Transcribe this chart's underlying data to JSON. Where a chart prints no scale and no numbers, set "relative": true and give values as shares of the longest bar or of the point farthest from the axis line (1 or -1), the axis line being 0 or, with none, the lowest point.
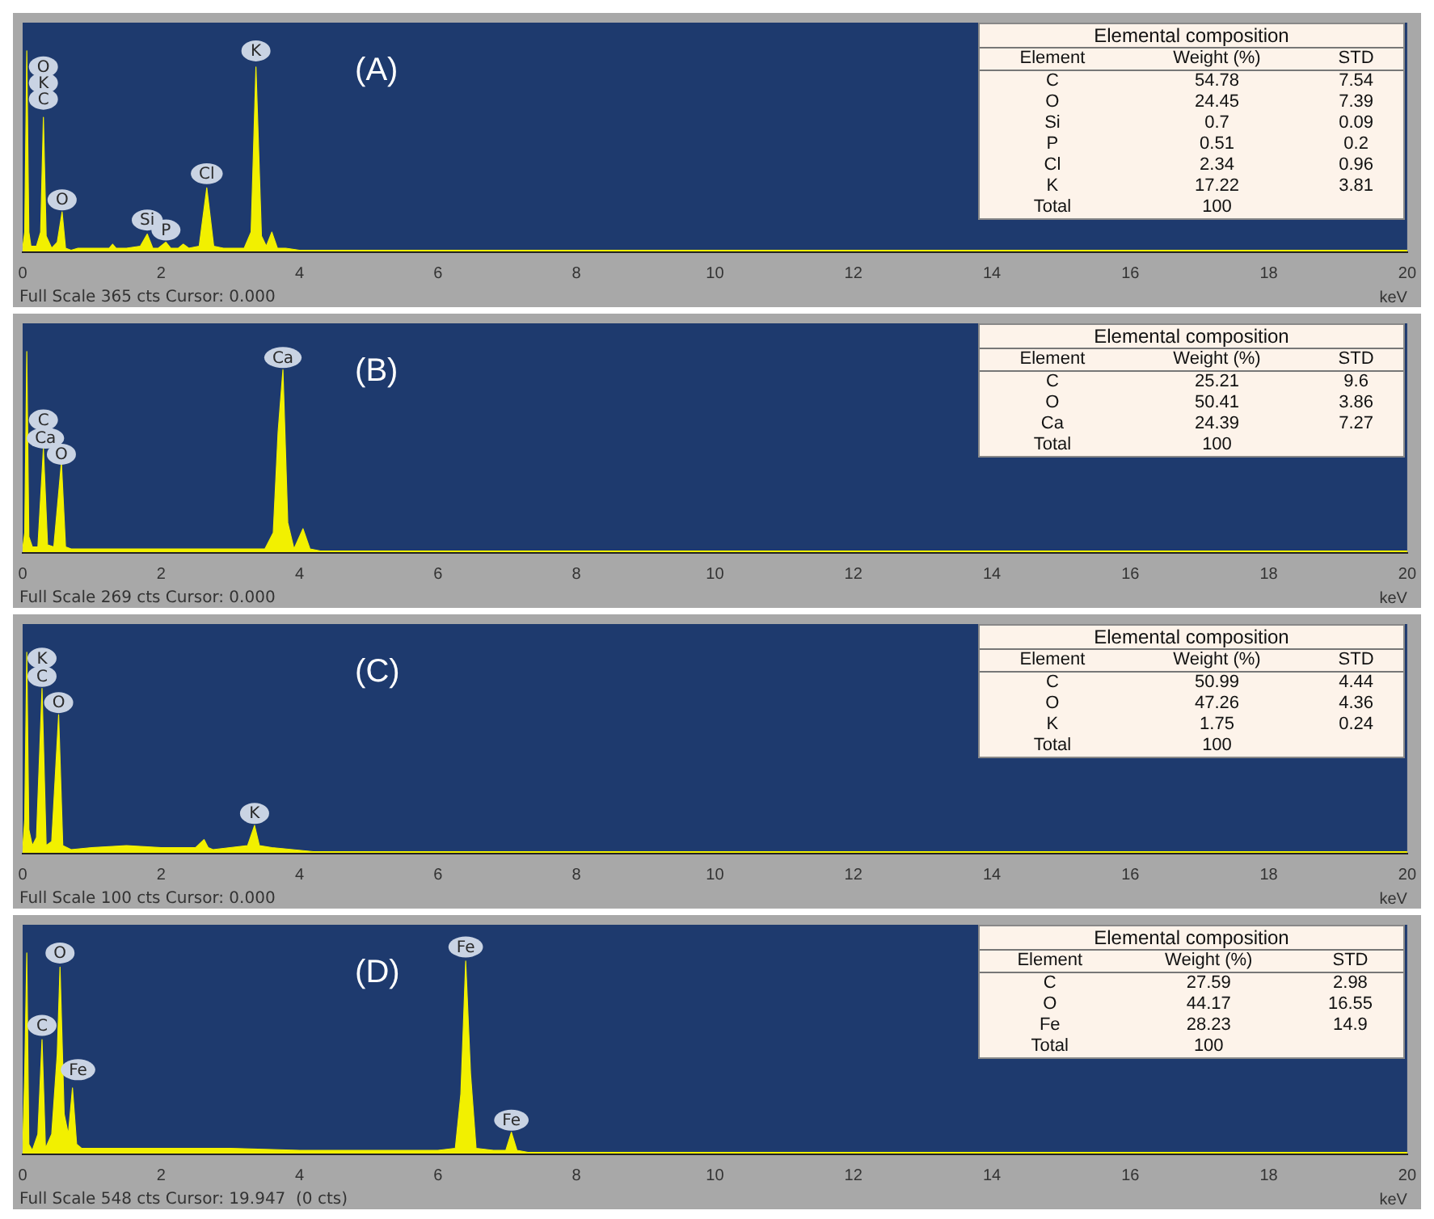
{
  "chart_data": [
    {
      "type": "area",
      "title": "(A)",
      "xlabel": "keV",
      "xlim": [
        0,
        20
      ],
      "xticks": [
        0,
        2,
        4,
        6,
        8,
        10,
        12,
        14,
        16,
        18,
        20
      ],
      "relative": true,
      "grid": false,
      "legend": false,
      "x": [
        0,
        0.03,
        0.06,
        0.09,
        0.12,
        0.2,
        0.26,
        0.3,
        0.34,
        0.42,
        0.5,
        0.57,
        0.62,
        0.7,
        0.8,
        1.0,
        1.25,
        1.3,
        1.35,
        1.5,
        1.7,
        1.8,
        1.88,
        1.96,
        2.07,
        2.14,
        2.25,
        2.32,
        2.4,
        2.55,
        2.66,
        2.76,
        2.9,
        3.2,
        3.3,
        3.37,
        3.45,
        3.52,
        3.6,
        3.68,
        3.8,
        4.0,
        5.0,
        6.0,
        8.0,
        10,
        12,
        14,
        16,
        18,
        20
      ],
      "series": [
        {
          "color": "#f2f000",
          "values": [
            0.02,
            0.1,
            1,
            0.1,
            0.03,
            0.03,
            0.1,
            0.67,
            0.08,
            0.02,
            0.05,
            0.2,
            0.02,
            0.01,
            0.02,
            0.02,
            0.02,
            0.04,
            0.02,
            0.02,
            0.03,
            0.09,
            0.02,
            0.02,
            0.05,
            0.02,
            0.02,
            0.04,
            0.02,
            0.03,
            0.32,
            0.03,
            0.02,
            0.02,
            0.1,
            0.92,
            0.08,
            0.03,
            0.1,
            0.02,
            0.02,
            0.01,
            0.01,
            0.01,
            0.01,
            0.01,
            0.01,
            0.01,
            0.01,
            0.01,
            0.01
          ]
        }
      ],
      "annotations": [
        "Full Scale 365 cts Cursor: 0.000",
        "Elemental composition",
        "Element\tWeight (%)\tSTD",
        "C\t54.78\t7.54",
        "O\t24.45\t7.39",
        "Si\t0.7\t0.09",
        "P\t0.51\t0.2",
        "Cl\t2.34\t0.96",
        "K\t17.22\t3.81",
        "Total\t100\t",
        {
          "text": "O",
          "x": 0.3,
          "y": 0.92
        },
        {
          "text": "K",
          "x": 0.3,
          "y": 0.84
        },
        {
          "text": "C",
          "x": 0.3,
          "y": 0.76
        },
        {
          "text": "O",
          "x": 0.57,
          "y": 0.26
        },
        {
          "text": "Si",
          "x": 1.8,
          "y": 0.16
        },
        {
          "text": "P",
          "x": 2.07,
          "y": 0.11
        },
        {
          "text": "Cl",
          "x": 2.66,
          "y": 0.39
        },
        {
          "text": "K",
          "x": 3.37,
          "y": 1.0
        }
      ]
    },
    {
      "type": "area",
      "title": "(B)",
      "xlabel": "keV",
      "xlim": [
        0,
        20
      ],
      "xticks": [
        0,
        2,
        4,
        6,
        8,
        10,
        12,
        14,
        16,
        18,
        20
      ],
      "relative": true,
      "grid": false,
      "legend": false,
      "x": [
        0,
        0.03,
        0.06,
        0.09,
        0.14,
        0.22,
        0.3,
        0.36,
        0.45,
        0.56,
        0.62,
        0.7,
        1.0,
        1.5,
        2.0,
        2.5,
        3.0,
        3.5,
        3.62,
        3.69,
        3.76,
        3.83,
        3.92,
        4.05,
        4.15,
        4.3,
        5,
        6,
        8,
        10,
        12,
        14,
        16,
        18,
        20
      ],
      "series": [
        {
          "color": "#f2f000",
          "values": [
            0.02,
            0.1,
            1,
            0.08,
            0.03,
            0.03,
            0.52,
            0.04,
            0.03,
            0.45,
            0.03,
            0.02,
            0.02,
            0.02,
            0.02,
            0.02,
            0.02,
            0.02,
            0.1,
            0.6,
            0.91,
            0.15,
            0.02,
            0.12,
            0.02,
            0.01,
            0.01,
            0.01,
            0.01,
            0.01,
            0.01,
            0.01,
            0.01,
            0.01,
            0.01
          ]
        }
      ],
      "annotations": [
        "Full Scale 269 cts Cursor: 0.000",
        "Elemental composition",
        "Element\tWeight (%)\tSTD",
        "C\t25.21\t9.6",
        "O\t50.41\t3.86",
        "Ca\t24.39\t7.27",
        "Total\t100\t",
        {
          "text": "Ca",
          "x": 3.76,
          "y": 0.97
        },
        {
          "text": "C",
          "x": 0.3,
          "y": 0.66
        },
        {
          "text": "Ca",
          "x": 0.33,
          "y": 0.57
        },
        {
          "text": "O",
          "x": 0.56,
          "y": 0.49
        }
      ]
    },
    {
      "type": "area",
      "title": "(C)",
      "xlabel": "keV",
      "xlim": [
        0,
        20
      ],
      "xticks": [
        0,
        2,
        4,
        6,
        8,
        10,
        12,
        14,
        16,
        18,
        20
      ],
      "relative": true,
      "grid": false,
      "legend": false,
      "x": [
        0,
        0.03,
        0.06,
        0.09,
        0.14,
        0.2,
        0.28,
        0.34,
        0.42,
        0.52,
        0.58,
        0.7,
        1.0,
        1.5,
        2.0,
        2.5,
        2.62,
        2.68,
        2.75,
        3.0,
        3.25,
        3.35,
        3.42,
        3.6,
        3.9,
        4.2,
        5,
        6,
        8,
        10,
        12,
        14,
        16,
        18,
        20
      ],
      "series": [
        {
          "color": "#f2f000",
          "values": [
            0.02,
            0.17,
            1,
            0.12,
            0.04,
            0.08,
            0.82,
            0.04,
            0.06,
            0.69,
            0.04,
            0.02,
            0.03,
            0.04,
            0.03,
            0.03,
            0.07,
            0.03,
            0.02,
            0.03,
            0.04,
            0.14,
            0.04,
            0.03,
            0.02,
            0.01,
            0.01,
            0.01,
            0.01,
            0.01,
            0.01,
            0.01,
            0.01,
            0.01,
            0.01
          ]
        }
      ],
      "annotations": [
        "Full Scale 100 cts Cursor: 0.000",
        "Elemental composition",
        "Element\tWeight (%)\tSTD",
        "C\t50.99\t4.44",
        "O\t47.26\t4.36",
        "K\t1.75\t0.24",
        "Total\t100\t",
        {
          "text": "K",
          "x": 0.28,
          "y": 0.97
        },
        {
          "text": "C",
          "x": 0.28,
          "y": 0.88
        },
        {
          "text": "O",
          "x": 0.52,
          "y": 0.75
        },
        {
          "text": "K",
          "x": 3.35,
          "y": 0.2
        }
      ]
    },
    {
      "type": "area",
      "title": "(D)",
      "xlabel": "keV",
      "xlim": [
        0,
        20
      ],
      "xticks": [
        0,
        2,
        4,
        6,
        8,
        10,
        12,
        14,
        16,
        18,
        20
      ],
      "relative": true,
      "grid": false,
      "legend": false,
      "x": [
        0,
        0.03,
        0.06,
        0.09,
        0.14,
        0.22,
        0.28,
        0.33,
        0.42,
        0.5,
        0.54,
        0.6,
        0.66,
        0.72,
        0.78,
        0.85,
        1.0,
        2.0,
        3.0,
        4.0,
        5.0,
        6.0,
        6.25,
        6.33,
        6.4,
        6.47,
        6.55,
        6.8,
        6.98,
        7.06,
        7.14,
        7.3,
        8,
        10,
        12,
        14,
        16,
        18,
        20
      ],
      "series": [
        {
          "color": "#f2f000",
          "values": [
            0.02,
            0.4,
            1,
            0.05,
            0.02,
            0.1,
            0.57,
            0.03,
            0.1,
            0.5,
            0.93,
            0.2,
            0.1,
            0.33,
            0.05,
            0.03,
            0.03,
            0.03,
            0.03,
            0.02,
            0.02,
            0.02,
            0.03,
            0.3,
            0.96,
            0.4,
            0.03,
            0.02,
            0.02,
            0.11,
            0.02,
            0.01,
            0.01,
            0.01,
            0.01,
            0.01,
            0.01,
            0.01,
            0.01
          ]
        }
      ],
      "annotations": [
        "Full Scale 548 cts Cursor: 19.947  (0 cts)",
        "Elemental composition",
        "Element\tWeight (%)\tSTD",
        "C\t27.59\t2.98",
        "O\t44.17\t16.55",
        "Fe\t28.23\t14.9",
        "Total\t100\t",
        {
          "text": "Fe",
          "x": 0.8,
          "y": 0.42
        },
        {
          "text": "O",
          "x": 0.54,
          "y": 1.0
        },
        {
          "text": "C",
          "x": 0.28,
          "y": 0.64
        },
        {
          "text": "Fe",
          "x": 6.4,
          "y": 1.03
        },
        {
          "text": "Fe",
          "x": 7.06,
          "y": 0.17
        }
      ]
    }
  ]
}
